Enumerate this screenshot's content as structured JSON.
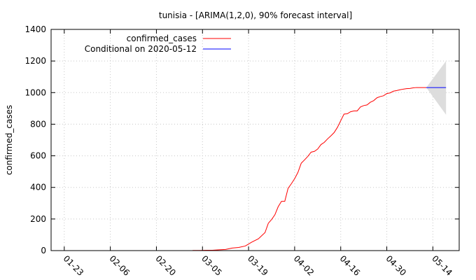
{
  "chart_data": {
    "type": "line",
    "title": "tunisia -  [ARIMA(1,2,0), 90% forecast interval]",
    "ylabel": "confirmed_cases",
    "xlabel": "",
    "ylim": [
      0,
      1400
    ],
    "yticks": [
      0,
      200,
      400,
      600,
      800,
      1000,
      1200,
      1400
    ],
    "xlim": [
      "2020-01-19",
      "2020-05-22"
    ],
    "xticks": [
      "2020-01-23",
      "2020-02-06",
      "2020-02-20",
      "2020-03-05",
      "2020-03-19",
      "2020-04-02",
      "2020-04-16",
      "2020-04-30",
      "2020-05-14"
    ],
    "xtick_labels": [
      "01-23",
      "02-06",
      "02-20",
      "03-05",
      "03-19",
      "04-02",
      "04-16",
      "04-30",
      "05-14"
    ],
    "grid": true,
    "legend": "top-left",
    "series": [
      {
        "name": "confirmed_cases",
        "color": "#ff0000",
        "x": [
          "2020-03-02",
          "2020-03-04",
          "2020-03-06",
          "2020-03-08",
          "2020-03-10",
          "2020-03-12",
          "2020-03-14",
          "2020-03-16",
          "2020-03-18",
          "2020-03-20",
          "2020-03-22",
          "2020-03-24",
          "2020-03-25",
          "2020-03-26",
          "2020-03-27",
          "2020-03-28",
          "2020-03-29",
          "2020-03-30",
          "2020-03-31",
          "2020-04-01",
          "2020-04-02",
          "2020-04-03",
          "2020-04-04",
          "2020-04-05",
          "2020-04-06",
          "2020-04-07",
          "2020-04-08",
          "2020-04-09",
          "2020-04-10",
          "2020-04-11",
          "2020-04-12",
          "2020-04-13",
          "2020-04-14",
          "2020-04-15",
          "2020-04-16",
          "2020-04-17",
          "2020-04-18",
          "2020-04-19",
          "2020-04-20",
          "2020-04-21",
          "2020-04-22",
          "2020-04-23",
          "2020-04-24",
          "2020-04-25",
          "2020-04-26",
          "2020-04-27",
          "2020-04-28",
          "2020-04-29",
          "2020-04-30",
          "2020-05-01",
          "2020-05-02",
          "2020-05-03",
          "2020-05-04",
          "2020-05-05",
          "2020-05-06",
          "2020-05-07",
          "2020-05-08",
          "2020-05-09",
          "2020-05-10",
          "2020-05-11",
          "2020-05-12"
        ],
        "y": [
          1,
          1,
          2,
          2,
          5,
          7,
          16,
          20,
          29,
          54,
          75,
          114,
          173,
          197,
          227,
          278,
          312,
          312,
          394,
          423,
          455,
          495,
          553,
          574,
          596,
          623,
          628,
          643,
          671,
          685,
          707,
          726,
          747,
          780,
          822,
          864,
          866,
          879,
          884,
          884,
          909,
          918,
          922,
          939,
          949,
          967,
          975,
          980,
          994,
          998,
          1009,
          1013,
          1018,
          1022,
          1025,
          1026,
          1030,
          1032,
          1032,
          1032,
          1032
        ]
      },
      {
        "name": "Conditional on 2020-05-12",
        "color": "#0000ff",
        "x": [
          "2020-05-12",
          "2020-05-18"
        ],
        "y": [
          1032,
          1032
        ],
        "band_color": "#dddddd",
        "interval_x": [
          "2020-05-12",
          "2020-05-18"
        ],
        "interval_lower": [
          1032,
          860
        ],
        "interval_upper": [
          1032,
          1200
        ]
      }
    ]
  }
}
